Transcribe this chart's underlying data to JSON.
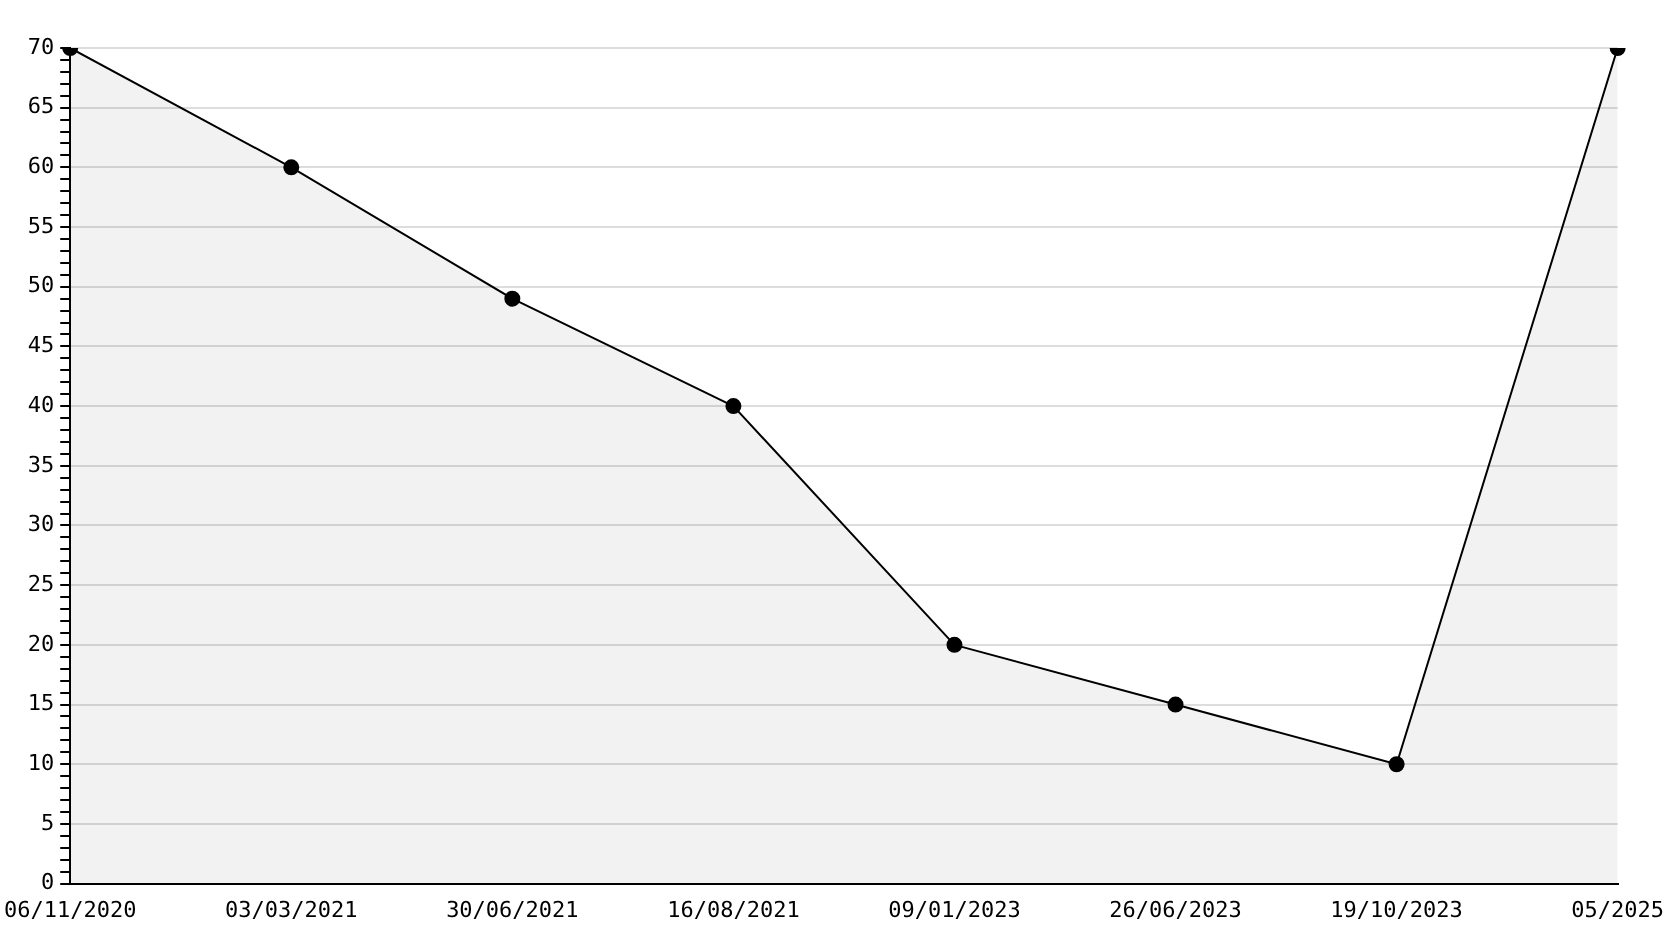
{
  "chart_data": {
    "type": "area",
    "categories": [
      "06/11/2020",
      "03/03/2021",
      "30/06/2021",
      "16/08/2021",
      "09/01/2023",
      "26/06/2023",
      "19/10/2023",
      "05/2025"
    ],
    "series": [
      {
        "color": "#000000",
        "values": [
          70,
          60,
          49,
          40,
          20,
          15,
          10,
          70
        ]
      }
    ],
    "ylim": [
      0,
      70
    ],
    "yticks": [
      0,
      {
        "value": 1,
        "label": null
      },
      {
        "value": 2,
        "label": null
      },
      {
        "value": 3,
        "label": null
      },
      {
        "value": 4,
        "label": null
      },
      5,
      {
        "value": 6,
        "label": null
      },
      {
        "value": 7,
        "label": null
      },
      {
        "value": 8,
        "label": null
      },
      {
        "value": 9,
        "label": null
      },
      10,
      {
        "value": 11,
        "label": null
      },
      {
        "value": 12,
        "label": null
      },
      {
        "value": 13,
        "label": null
      },
      {
        "value": 14,
        "label": null
      },
      15,
      {
        "value": 16,
        "label": null
      },
      {
        "value": 17,
        "label": null
      },
      {
        "value": 18,
        "label": null
      },
      {
        "value": 19,
        "label": null
      },
      20,
      {
        "value": 21,
        "label": null
      },
      {
        "value": 22,
        "label": null
      },
      {
        "value": 23,
        "label": null
      },
      {
        "value": 24,
        "label": null
      },
      25,
      {
        "value": 26,
        "label": null
      },
      {
        "value": 27,
        "label": null
      },
      {
        "value": 28,
        "label": null
      },
      {
        "value": 29,
        "label": null
      },
      30,
      {
        "value": 31,
        "label": null
      },
      {
        "value": 32,
        "label": null
      },
      {
        "value": 33,
        "label": null
      },
      {
        "value": 34,
        "label": null
      },
      35,
      {
        "value": 36,
        "label": null
      },
      {
        "value": 37,
        "label": null
      },
      {
        "value": 38,
        "label": null
      },
      {
        "value": 39,
        "label": null
      },
      40,
      {
        "value": 41,
        "label": null
      },
      {
        "value": 42,
        "label": null
      },
      {
        "value": 43,
        "label": null
      },
      {
        "value": 44,
        "label": null
      },
      45,
      {
        "value": 46,
        "label": null
      },
      {
        "value": 47,
        "label": null
      },
      {
        "value": 48,
        "label": null
      },
      {
        "value": 49,
        "label": null
      },
      50,
      {
        "value": 51,
        "label": null
      },
      {
        "value": 52,
        "label": null
      },
      {
        "value": 53,
        "label": null
      },
      {
        "value": 54,
        "label": null
      },
      55,
      {
        "value": 56,
        "label": null
      },
      {
        "value": 57,
        "label": null
      },
      {
        "value": 58,
        "label": null
      },
      {
        "value": 59,
        "label": null
      },
      60,
      {
        "value": 61,
        "label": null
      },
      {
        "value": 62,
        "label": null
      },
      {
        "value": 63,
        "label": null
      },
      {
        "value": 64,
        "label": null
      },
      65,
      {
        "value": 66,
        "label": null
      },
      {
        "value": 67,
        "label": null
      },
      {
        "value": 68,
        "label": null
      },
      {
        "value": 69,
        "label": null
      },
      70
    ],
    "grid": "y",
    "marker": "circle",
    "line_style": "solid",
    "legend": false
  }
}
